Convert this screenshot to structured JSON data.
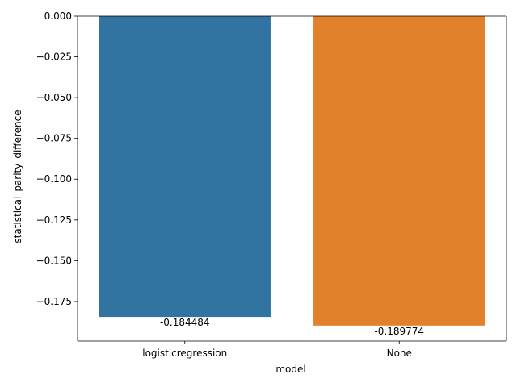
{
  "chart_data": {
    "type": "bar",
    "categories": [
      "logisticregression",
      "None"
    ],
    "values": [
      -0.184484,
      -0.189774
    ],
    "data_labels": [
      "-0.184484",
      "-0.189774"
    ],
    "colors": [
      "#3274a1",
      "#e1812c"
    ],
    "xlabel": "model",
    "ylabel": "statistical_parity_difference",
    "ylim": [
      -0.19926,
      0.0
    ],
    "yticks": [
      0.0,
      -0.025,
      -0.05,
      -0.075,
      -0.1,
      -0.125,
      -0.15,
      -0.175
    ],
    "ytick_labels": [
      "0.000",
      "−0.025",
      "−0.050",
      "−0.075",
      "−0.100",
      "−0.125",
      "−0.150",
      "−0.175"
    ],
    "grid": false,
    "legend": "none"
  }
}
